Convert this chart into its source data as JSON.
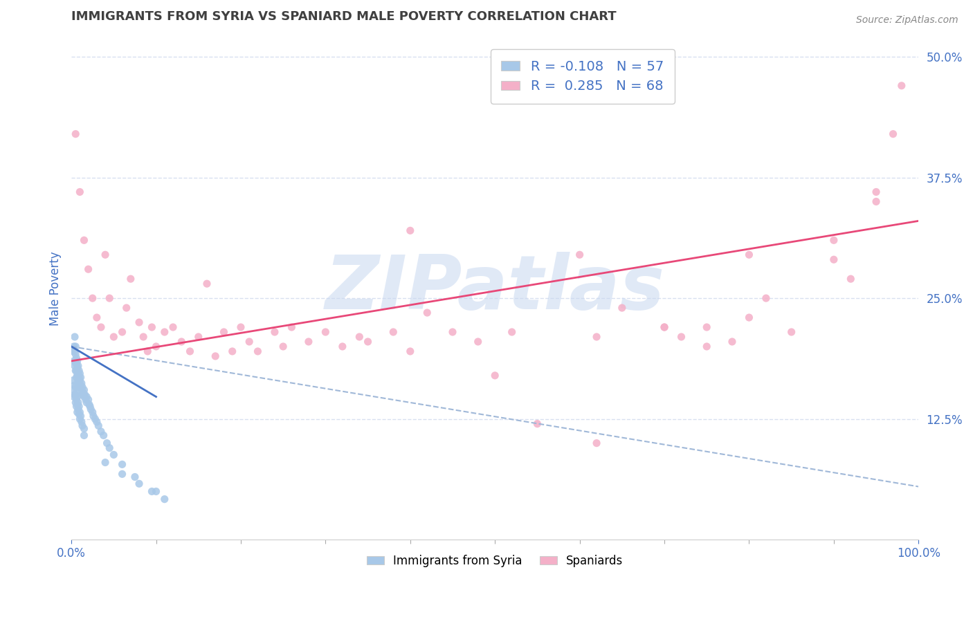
{
  "title": "IMMIGRANTS FROM SYRIA VS SPANIARD MALE POVERTY CORRELATION CHART",
  "source": "Source: ZipAtlas.com",
  "ylabel": "Male Poverty",
  "xlim": [
    0,
    1.0
  ],
  "ylim": [
    0,
    0.52
  ],
  "xticks": [
    0.0,
    1.0
  ],
  "xticklabels": [
    "0.0%",
    "100.0%"
  ],
  "yticks": [
    0.125,
    0.25,
    0.375,
    0.5
  ],
  "yticklabels": [
    "12.5%",
    "25.0%",
    "37.5%",
    "50.0%"
  ],
  "blue_R": -0.108,
  "blue_N": 57,
  "pink_R": 0.285,
  "pink_N": 68,
  "blue_dot_color": "#a8c8e8",
  "pink_dot_color": "#f4b0c8",
  "blue_line_color": "#4472c4",
  "pink_line_color": "#e84878",
  "dashed_line_color": "#a0b8d8",
  "grid_color": "#d8e0f0",
  "title_color": "#404040",
  "tick_color": "#4472c4",
  "ylabel_color": "#4472c4",
  "watermark": "ZIPatlas",
  "watermark_color": "#c8d8f0",
  "legend_label_blue": "Immigrants from Syria",
  "legend_label_pink": "Spaniards",
  "blue_scatter_x": [
    0.002,
    0.003,
    0.003,
    0.004,
    0.004,
    0.004,
    0.005,
    0.005,
    0.005,
    0.005,
    0.006,
    0.006,
    0.006,
    0.006,
    0.007,
    0.007,
    0.007,
    0.008,
    0.008,
    0.008,
    0.008,
    0.009,
    0.009,
    0.009,
    0.01,
    0.01,
    0.01,
    0.011,
    0.011,
    0.012,
    0.012,
    0.013,
    0.013,
    0.014,
    0.015,
    0.015,
    0.016,
    0.017,
    0.018,
    0.018,
    0.02,
    0.021,
    0.022,
    0.023,
    0.025,
    0.026,
    0.028,
    0.03,
    0.032,
    0.035,
    0.038,
    0.042,
    0.045,
    0.05,
    0.06,
    0.075,
    0.1
  ],
  "blue_scatter_y": [
    0.195,
    0.2,
    0.185,
    0.21,
    0.195,
    0.18,
    0.2,
    0.192,
    0.185,
    0.175,
    0.188,
    0.182,
    0.175,
    0.168,
    0.185,
    0.178,
    0.17,
    0.18,
    0.172,
    0.165,
    0.158,
    0.175,
    0.168,
    0.16,
    0.172,
    0.165,
    0.158,
    0.168,
    0.16,
    0.162,
    0.155,
    0.158,
    0.15,
    0.152,
    0.155,
    0.148,
    0.15,
    0.145,
    0.148,
    0.142,
    0.145,
    0.14,
    0.138,
    0.135,
    0.132,
    0.128,
    0.125,
    0.122,
    0.118,
    0.112,
    0.108,
    0.1,
    0.095,
    0.088,
    0.078,
    0.065,
    0.05
  ],
  "blue_scatter_x2": [
    0.002,
    0.003,
    0.003,
    0.004,
    0.004,
    0.005,
    0.005,
    0.005,
    0.006,
    0.006,
    0.006,
    0.007,
    0.007,
    0.007,
    0.008,
    0.008,
    0.009,
    0.009,
    0.01,
    0.01,
    0.011,
    0.012,
    0.013,
    0.015,
    0.015,
    0.04,
    0.06,
    0.08,
    0.095,
    0.11
  ],
  "blue_scatter_y2": [
    0.165,
    0.155,
    0.148,
    0.16,
    0.15,
    0.158,
    0.15,
    0.142,
    0.152,
    0.145,
    0.138,
    0.148,
    0.14,
    0.132,
    0.142,
    0.135,
    0.138,
    0.13,
    0.132,
    0.125,
    0.128,
    0.122,
    0.118,
    0.115,
    0.108,
    0.08,
    0.068,
    0.058,
    0.05,
    0.042
  ],
  "pink_scatter_x": [
    0.005,
    0.01,
    0.015,
    0.02,
    0.025,
    0.03,
    0.035,
    0.04,
    0.045,
    0.05,
    0.06,
    0.065,
    0.07,
    0.08,
    0.085,
    0.09,
    0.095,
    0.1,
    0.11,
    0.12,
    0.13,
    0.14,
    0.15,
    0.16,
    0.17,
    0.18,
    0.19,
    0.2,
    0.21,
    0.22,
    0.24,
    0.25,
    0.26,
    0.28,
    0.3,
    0.32,
    0.34,
    0.35,
    0.38,
    0.4,
    0.42,
    0.45,
    0.48,
    0.5,
    0.52,
    0.55,
    0.6,
    0.62,
    0.65,
    0.7,
    0.75,
    0.78,
    0.8,
    0.85,
    0.9,
    0.92,
    0.95,
    0.98,
    0.4,
    0.62,
    0.7,
    0.72,
    0.75,
    0.8,
    0.82,
    0.9,
    0.95,
    0.97
  ],
  "pink_scatter_y": [
    0.42,
    0.36,
    0.31,
    0.28,
    0.25,
    0.23,
    0.22,
    0.295,
    0.25,
    0.21,
    0.215,
    0.24,
    0.27,
    0.225,
    0.21,
    0.195,
    0.22,
    0.2,
    0.215,
    0.22,
    0.205,
    0.195,
    0.21,
    0.265,
    0.19,
    0.215,
    0.195,
    0.22,
    0.205,
    0.195,
    0.215,
    0.2,
    0.22,
    0.205,
    0.215,
    0.2,
    0.21,
    0.205,
    0.215,
    0.195,
    0.235,
    0.215,
    0.205,
    0.17,
    0.215,
    0.12,
    0.295,
    0.21,
    0.24,
    0.22,
    0.22,
    0.205,
    0.295,
    0.215,
    0.31,
    0.27,
    0.36,
    0.47,
    0.32,
    0.1,
    0.22,
    0.21,
    0.2,
    0.23,
    0.25,
    0.29,
    0.35,
    0.42
  ],
  "blue_line_x": [
    0.0,
    0.1
  ],
  "blue_line_y": [
    0.2,
    0.148
  ],
  "pink_line_x": [
    0.0,
    1.0
  ],
  "pink_line_y": [
    0.185,
    0.33
  ],
  "dashed_line_x": [
    0.0,
    1.0
  ],
  "dashed_line_y": [
    0.2,
    0.055
  ]
}
